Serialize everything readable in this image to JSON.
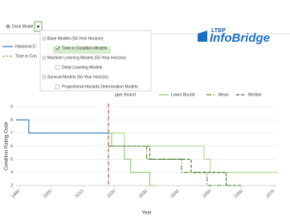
{
  "toolbar": {
    "option": "Deck Model"
  },
  "side_legend": {
    "items": [
      "Historical D",
      "Time in Con"
    ]
  },
  "menu": {
    "groups": [
      {
        "label": "Base Models (50-Year Horizon)",
        "items": [
          "Time in Condition Models"
        ]
      },
      {
        "label": "Machine Learning Models (50-Year Horizon)",
        "items": [
          "Deep Learning Models"
        ]
      },
      {
        "label": "Survival Models (50-Year Horizon)",
        "items": [
          "Proportional Hazards Deterioration Models"
        ]
      }
    ]
  },
  "logo": {
    "prefix": "LTBP",
    "name": "InfoBridge"
  },
  "chart_data": {
    "type": "line",
    "ylabel": "Condition Rating Code",
    "xlabel": "Year",
    "xlim": [
      1989,
      2071
    ],
    "xticks": [
      1990,
      2000,
      2010,
      2020,
      2030,
      2040,
      2050,
      2060,
      2070
    ],
    "ylim": [
      3,
      9
    ],
    "yticks": [
      3,
      4,
      5,
      6,
      7,
      8,
      9
    ],
    "grid": true,
    "current_year": 2018,
    "series": [
      {
        "color": "#2e75b6",
        "dash": "none",
        "x": [
          1989,
          1993,
          1993,
          2018
        ],
        "values": [
          8,
          8,
          7,
          7
        ]
      },
      {
        "name": "pper Bound",
        "color": "#a9d88f",
        "dash": "none",
        "x": [
          2018,
          2023,
          2023,
          2048,
          2048,
          2050,
          2050,
          2071
        ],
        "values": [
          7,
          7,
          6,
          6,
          5,
          5,
          4,
          4
        ]
      },
      {
        "name": "Lower Bound",
        "color": "#8cc870",
        "dash": "none",
        "x": [
          2018,
          2019,
          2019,
          2023,
          2023,
          2025,
          2025,
          2031,
          2031,
          2033
        ],
        "values": [
          7,
          7,
          6,
          6,
          5,
          5,
          4,
          4,
          3,
          3
        ]
      },
      {
        "name": "Mean",
        "color": "#4e8a2a",
        "dash": "6 2 1.5 2",
        "x": [
          2018,
          2030,
          2030,
          2041,
          2041,
          2049,
          2049,
          2058
        ],
        "values": [
          6,
          6,
          5,
          5,
          4,
          4,
          3,
          3
        ]
      },
      {
        "name": "Median",
        "color": "#3a7420",
        "dash": "4 2",
        "x": [
          2018,
          2031,
          2031,
          2044,
          2044,
          2055,
          2055,
          2060
        ],
        "values": [
          6,
          6,
          5,
          5,
          4,
          4,
          3,
          3
        ]
      }
    ]
  }
}
